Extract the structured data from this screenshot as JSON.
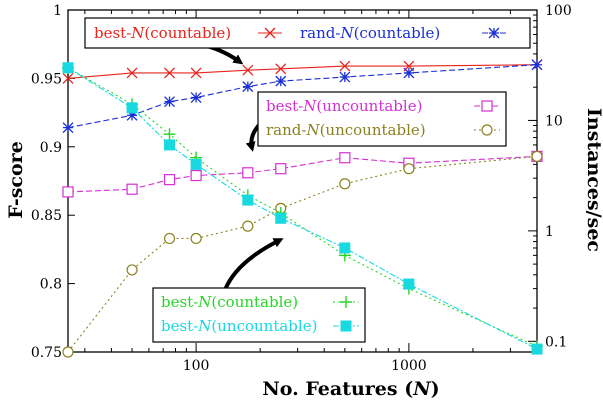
{
  "chart_data": {
    "type": "line",
    "xlabel": "No. Features (N)",
    "xscale": "log",
    "xlim": [
      25,
      4000
    ],
    "x_ticks": [
      100,
      1000
    ],
    "x_tick_labels": [
      "100",
      "1000"
    ],
    "ylabel_left": "F-score",
    "ylim_left": [
      0.75,
      1.0
    ],
    "y_left_ticks": [
      0.75,
      0.8,
      0.85,
      0.9,
      0.95,
      1.0
    ],
    "y_left_tick_labels": [
      "0.75",
      "0.8",
      "0.85",
      "0.9",
      "0.95",
      "1"
    ],
    "ylabel_right": "Instances/sec",
    "yscale_right": "log",
    "ylim_right": [
      0.08,
      100
    ],
    "y_right_ticks": [
      0.1,
      1,
      10,
      100
    ],
    "y_right_tick_labels": [
      "0.1",
      "1",
      "10",
      "100"
    ],
    "grid": false,
    "series": [
      {
        "name": "best-N(countable)",
        "axis": "left",
        "marker": "x",
        "color": "#e8241c",
        "dash": "none",
        "x": [
          25,
          50,
          75,
          100,
          175,
          250,
          500,
          1000,
          4000
        ],
        "y": [
          0.95,
          0.954,
          0.954,
          0.954,
          0.956,
          0.957,
          0.959,
          0.959,
          0.96
        ]
      },
      {
        "name": "rand-N(countable)",
        "axis": "left",
        "marker": "asterisk",
        "color": "#1a2fd6",
        "dash": "6 3",
        "x": [
          25,
          50,
          75,
          100,
          175,
          250,
          500,
          1000,
          4000
        ],
        "y": [
          0.914,
          0.923,
          0.933,
          0.936,
          0.944,
          0.948,
          0.951,
          0.954,
          0.96
        ]
      },
      {
        "name": "best-N(uncountable)",
        "axis": "left",
        "marker": "square",
        "color": "#d62fd6",
        "dash": "6 3",
        "x": [
          25,
          50,
          75,
          100,
          175,
          250,
          500,
          1000,
          4000
        ],
        "y": [
          0.867,
          0.869,
          0.876,
          0.879,
          0.881,
          0.884,
          0.892,
          0.888,
          0.893
        ]
      },
      {
        "name": "rand-N(uncountable)",
        "axis": "left",
        "marker": "circle",
        "color": "#8a8220",
        "dash": "2 3",
        "x": [
          25,
          50,
          75,
          100,
          175,
          250,
          500,
          1000,
          4000
        ],
        "y": [
          0.75,
          0.81,
          0.833,
          0.833,
          0.842,
          0.855,
          0.873,
          0.884,
          0.893
        ]
      },
      {
        "name": "best-N(countable)",
        "axis": "right",
        "marker": "plus",
        "color": "#28d628",
        "dash": "2 3",
        "x": [
          25,
          50,
          75,
          100,
          175,
          250,
          500,
          1000,
          4000
        ],
        "y": [
          30,
          14,
          7.5,
          4.6,
          2.1,
          1.45,
          0.6,
          0.3,
          0.09
        ]
      },
      {
        "name": "best-N(uncountable)",
        "axis": "right",
        "marker": "filled-square",
        "color": "#18d8e0",
        "dash": "6 2 2 2",
        "x": [
          25,
          50,
          75,
          100,
          175,
          250,
          500,
          1000,
          4000
        ],
        "y": [
          30,
          13,
          6,
          4,
          1.9,
          1.3,
          0.7,
          0.33,
          0.085
        ]
      }
    ],
    "legends": [
      {
        "entries": [
          {
            "name": "best-",
            "n": "N",
            "suffix": "(countable)",
            "series": 0
          },
          {
            "name": "rand-",
            "n": "N",
            "suffix": "(countable)",
            "series": 1
          }
        ]
      },
      {
        "entries": [
          {
            "name": "best-",
            "n": "N",
            "suffix": "(uncountable)",
            "series": 2
          },
          {
            "name": "rand-",
            "n": "N",
            "suffix": "(uncountable)",
            "series": 3
          }
        ]
      },
      {
        "entries": [
          {
            "name": "best-",
            "n": "N",
            "suffix": "(countable)",
            "series": 4
          },
          {
            "name": "best-",
            "n": "N",
            "suffix": "(uncountable)",
            "series": 5
          }
        ]
      }
    ]
  }
}
